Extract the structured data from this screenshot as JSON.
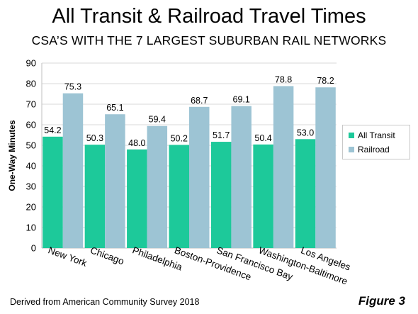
{
  "header": {
    "title": "All Transit & Railroad Travel Times",
    "subtitle": "CSA’S WITH THE 7 LARGEST SUBURBAN RAIL NETWORKS"
  },
  "footer": {
    "source": "Derived from American Community Survey 2018",
    "figure": "Figure 3"
  },
  "chart_data": {
    "type": "bar",
    "title": "All Transit & Railroad Travel Times",
    "subtitle": "CSA’S WITH THE 7 LARGEST SUBURBAN RAIL NETWORKS",
    "xlabel": "",
    "ylabel": "One-Way Minutes",
    "ylim": [
      0,
      90
    ],
    "yticks": [
      0,
      10,
      20,
      30,
      40,
      50,
      60,
      70,
      80,
      90
    ],
    "grid": true,
    "legend_position": "right",
    "categories": [
      "New York",
      "Chicago",
      "Philadelphia",
      "Boston-Providence",
      "San Francisco Bay",
      "Washington-Baltimore",
      "Los Angeles"
    ],
    "series": [
      {
        "name": "All Transit",
        "color": "#1dc99a",
        "values": [
          54.2,
          50.3,
          48.0,
          50.2,
          51.7,
          50.4,
          53.0
        ]
      },
      {
        "name": "Railroad",
        "color": "#9dc4d4",
        "values": [
          75.3,
          65.1,
          59.4,
          68.7,
          69.1,
          78.8,
          78.2
        ]
      }
    ]
  }
}
